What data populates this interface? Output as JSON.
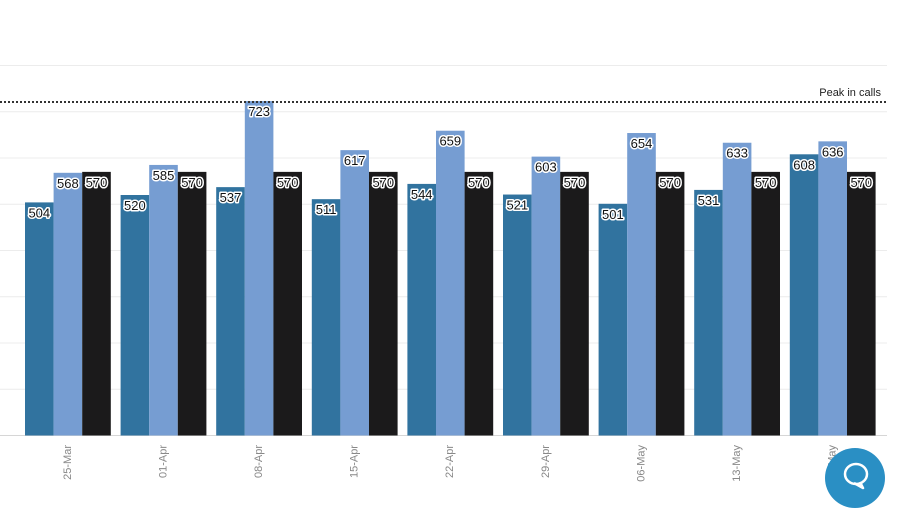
{
  "chart_data": {
    "type": "bar",
    "title": "",
    "xlabel": "",
    "ylabel": "",
    "categories": [
      "25-Mar",
      "01-Apr",
      "08-Apr",
      "15-Apr",
      "22-Apr",
      "29-Apr",
      "06-May",
      "13-May",
      "May"
    ],
    "series": [
      {
        "values": [
          504,
          520,
          537,
          511,
          544,
          521,
          501,
          531,
          608
        ],
        "color": "#31739f"
      },
      {
        "values": [
          568,
          585,
          723,
          617,
          659,
          603,
          654,
          633,
          636
        ],
        "color": "#769dd2"
      },
      {
        "values": [
          570,
          570,
          570,
          570,
          570,
          570,
          570,
          570,
          570
        ],
        "color": "#1b1a1b"
      }
    ],
    "ylim": [
      0,
      800
    ],
    "grid": true,
    "reference_line": {
      "value": 720,
      "label": "Peak in calls",
      "style": "dotted"
    }
  },
  "chat": {
    "icon": "chat-bubble-icon",
    "color": "#2a8fc4"
  }
}
